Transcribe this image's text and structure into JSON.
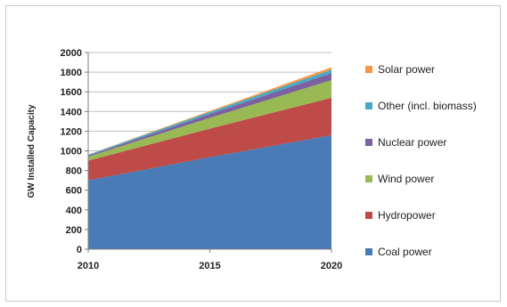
{
  "chart_data": {
    "type": "area",
    "stacked": true,
    "title": "",
    "xlabel": "",
    "ylabel": "GW Installed Capacity",
    "x": [
      2010,
      2015,
      2020
    ],
    "x_tick_labels": [
      "2010",
      "2015",
      "2020"
    ],
    "ylim": [
      0,
      2000
    ],
    "y_ticks": [
      0,
      200,
      400,
      600,
      800,
      1000,
      1200,
      1400,
      1600,
      1800,
      2000
    ],
    "y_tick_labels": [
      "0",
      "200",
      "400",
      "600",
      "800",
      "1000",
      "1200",
      "1400",
      "1600",
      "1800",
      "2000"
    ],
    "grid": "horizontal",
    "legend_position": "right",
    "series": [
      {
        "name": "Coal power",
        "color": "#4a7bb7",
        "values": [
          700,
          935,
          1160
        ]
      },
      {
        "name": "Hydropower",
        "color": "#be4b48",
        "values": [
          200,
          290,
          380
        ]
      },
      {
        "name": "Wind power",
        "color": "#98b954",
        "values": [
          40,
          110,
          180
        ]
      },
      {
        "name": "Nuclear power",
        "color": "#7d60a0",
        "values": [
          10,
          40,
          70
        ]
      },
      {
        "name": "Other (incl. biomass)",
        "color": "#46aac5",
        "values": [
          10,
          20,
          35
        ]
      },
      {
        "name": "Solar power",
        "color": "#f79646",
        "values": [
          2,
          10,
          25
        ]
      }
    ]
  }
}
